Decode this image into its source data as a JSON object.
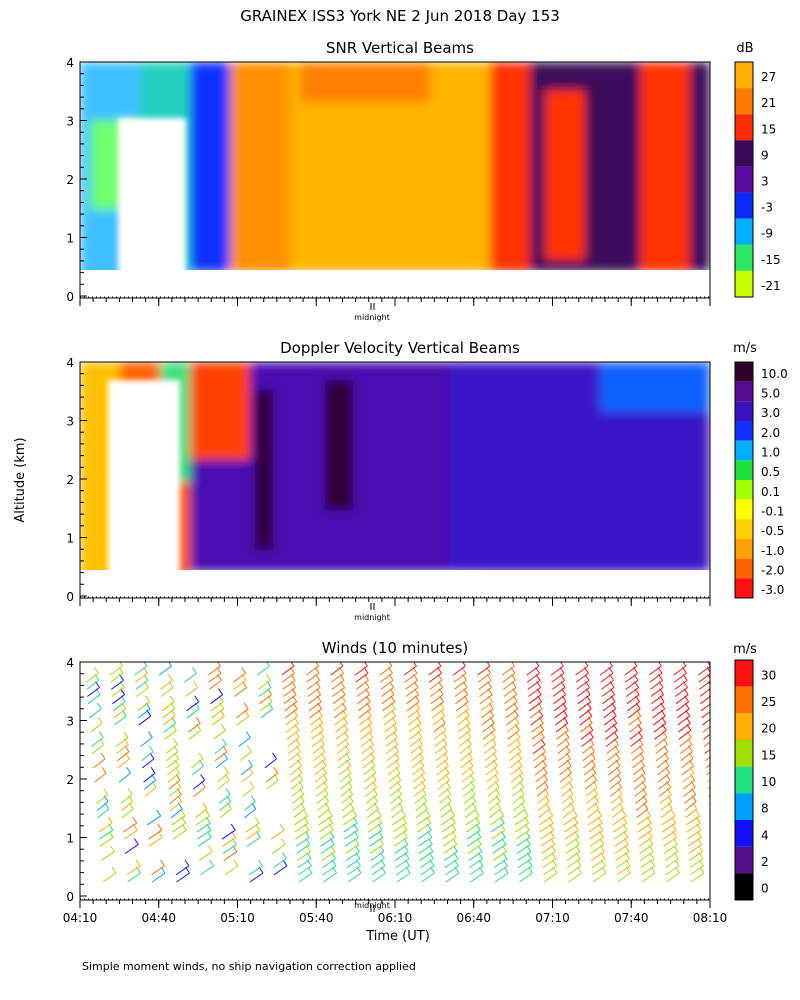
{
  "page": {
    "title": "GRAINEX ISS3 York NE   2 Jun 2018 Day 153",
    "ylabel": "Altitude (km)",
    "xlabel": "Time (UT)",
    "footnote": "Simple moment winds, no ship navigation correction applied",
    "midnight_marker": "midnight"
  },
  "chart_data": [
    {
      "type": "heatmap",
      "title": "SNR Vertical Beams",
      "ylim": [
        0,
        4
      ],
      "yticks": [
        "0",
        "1",
        "2",
        "3",
        "4"
      ],
      "xlim": [
        "04:10",
        "08:10"
      ],
      "colorbar": {
        "unit": "dB",
        "labels": [
          "27",
          "21",
          "15",
          "9",
          "3",
          "-3",
          "-9",
          "-15",
          "-21"
        ],
        "colors": [
          "#ffb000",
          "#ff7a00",
          "#ff2a00",
          "#3a0a5a",
          "#5a0aa0",
          "#0a2aff",
          "#00b0ff",
          "#30e860",
          "#c8ff00"
        ]
      }
    },
    {
      "type": "heatmap",
      "title": "Doppler Velocity Vertical Beams",
      "ylim": [
        0,
        4
      ],
      "yticks": [
        "0",
        "1",
        "2",
        "3",
        "4"
      ],
      "xlim": [
        "04:10",
        "08:10"
      ],
      "colorbar": {
        "unit": "m/s",
        "labels": [
          "10.0",
          "5.0",
          "3.0",
          "2.0",
          "1.0",
          "0.5",
          "0.1",
          "-0.1",
          "-0.5",
          "-1.0",
          "-2.0",
          "-3.0"
        ],
        "colors": [
          "#30002a",
          "#5a0a90",
          "#3a10c0",
          "#1030ff",
          "#00b0ff",
          "#20e040",
          "#a0ff00",
          "#ffff00",
          "#ffd000",
          "#ffa000",
          "#ff6000",
          "#ff1010"
        ]
      }
    },
    {
      "type": "scatter",
      "title": "Winds (10 minutes)",
      "ylim": [
        0,
        4
      ],
      "yticks": [
        "0",
        "1",
        "2",
        "3",
        "4"
      ],
      "xticks": [
        "04:10",
        "04:40",
        "05:10",
        "05:40",
        "06:10",
        "06:40",
        "07:10",
        "07:40",
        "08:10"
      ],
      "colorbar": {
        "unit": "m/s",
        "labels": [
          "30",
          "25",
          "20",
          "15",
          "10",
          "8",
          "4",
          "2",
          "0"
        ],
        "colors": [
          "#ff1010",
          "#ff7000",
          "#ffb000",
          "#a0e000",
          "#20e080",
          "#00a0ff",
          "#1010ff",
          "#50108a",
          "#000000"
        ]
      }
    }
  ]
}
